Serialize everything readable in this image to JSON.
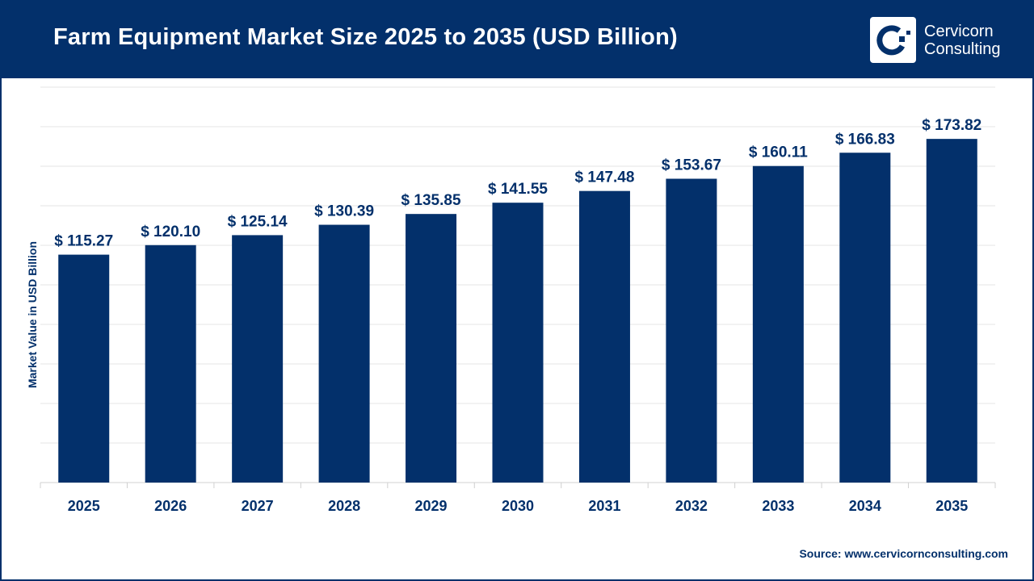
{
  "header": {
    "title": "Farm Equipment Market Size 2025 to 2035 (USD Billion)"
  },
  "logo": {
    "line1": "Cervicorn",
    "line2": "Consulting"
  },
  "source": "Source: www.cervicornconsulting.com",
  "colors": {
    "bar": "#03306b",
    "header": "#03306b",
    "grid": "#e6e6e6"
  },
  "chart_data": {
    "type": "bar",
    "title": "Farm Equipment Market Size 2025 to 2035 (USD Billion)",
    "xlabel": "",
    "ylabel": "Market Value in USD Billion",
    "categories": [
      "2025",
      "2026",
      "2027",
      "2028",
      "2029",
      "2030",
      "2031",
      "2032",
      "2033",
      "2034",
      "2035"
    ],
    "values": [
      115.27,
      120.1,
      125.14,
      130.39,
      135.85,
      141.55,
      147.48,
      153.67,
      160.11,
      166.83,
      173.82
    ],
    "data_labels": [
      "$ 115.27",
      "$ 120.10",
      "$ 125.14",
      "$ 130.39",
      "$ 135.85",
      "$ 141.55",
      "$ 147.48",
      "$ 153.67",
      "$ 160.11",
      "$ 166.83",
      "$ 173.82"
    ],
    "ylim": [
      0,
      200
    ],
    "y_grid_step": 20,
    "grid": true,
    "y_tick_labels_shown": false
  }
}
